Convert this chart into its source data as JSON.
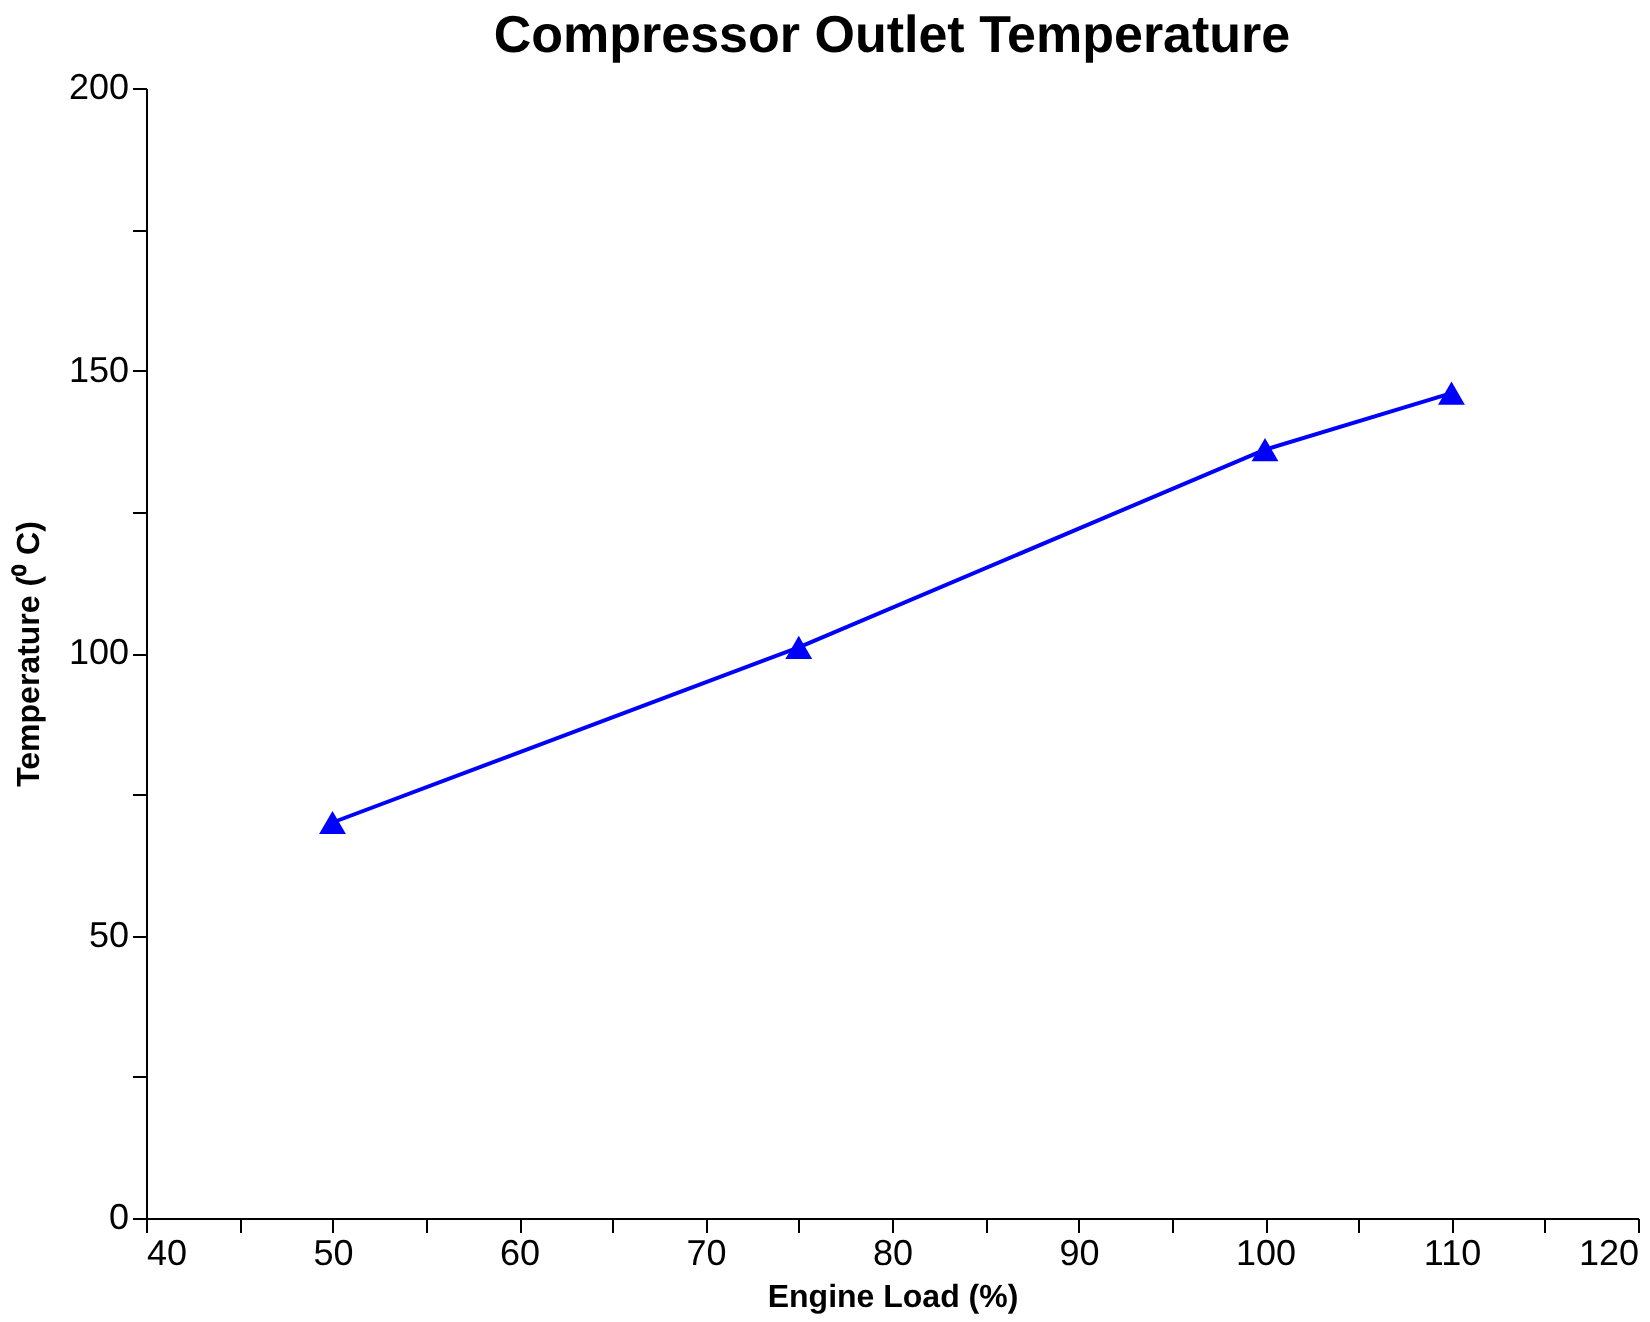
{
  "chart_data": {
    "type": "line",
    "title": "Compressor Outlet Temperature",
    "xlabel": "Engine Load (%)",
    "ylabel": "Temperature (⁰ C)",
    "x": [
      50,
      75,
      100,
      110
    ],
    "series": [
      {
        "color": "#0000ff",
        "values": [
          70,
          101,
          136,
          146
        ]
      }
    ],
    "xlim": [
      40,
      120
    ],
    "xticks": [
      40,
      {
        "value": 45,
        "label": null
      },
      50,
      {
        "value": 55,
        "label": null
      },
      60,
      {
        "value": 65,
        "label": null
      },
      70,
      {
        "value": 75,
        "label": null
      },
      80,
      {
        "value": 85,
        "label": null
      },
      90,
      {
        "value": 95,
        "label": null
      },
      100,
      {
        "value": 105,
        "label": null
      },
      110,
      {
        "value": 115,
        "label": null
      },
      120
    ],
    "ylim": [
      0,
      200
    ],
    "yticks": [
      0,
      {
        "value": 25,
        "label": null
      },
      50,
      {
        "value": 75,
        "label": null
      },
      100,
      {
        "value": 125,
        "label": null
      },
      150,
      {
        "value": 175,
        "label": null
      },
      200
    ],
    "grid": false,
    "marker": "triangle",
    "line_style": "solid"
  }
}
